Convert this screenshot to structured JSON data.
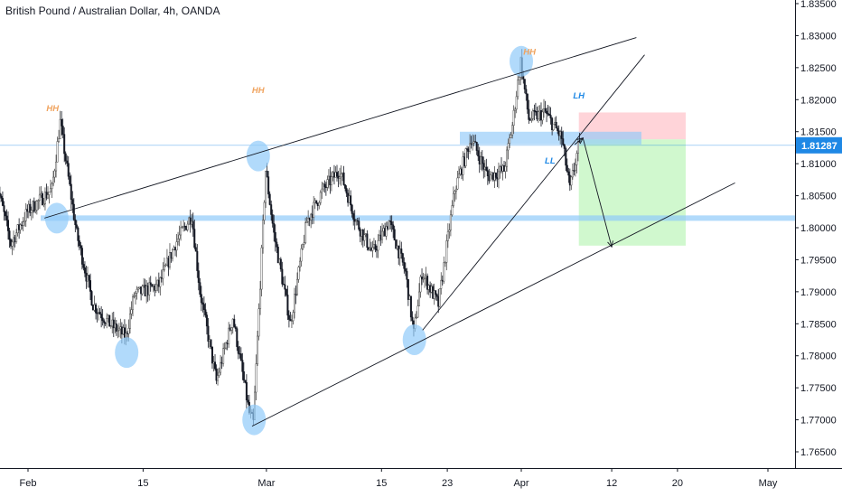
{
  "header": {
    "title": "British Pound / Australian Dollar, 4h, OANDA"
  },
  "colors": {
    "up": "#4d4d4d",
    "down": "#131722",
    "level": "#90caf9",
    "circle": "#90caf9",
    "stop_zone": "#ffcdd2",
    "target_zone": "#c8f7c5",
    "price_badge": "#1e88e5",
    "note_hh": "#f0a35e",
    "note_blue": "#1e88e5",
    "trend_line": "#131722"
  },
  "chart_data": {
    "type": "candlestick",
    "instrument": "British Pound / Australian Dollar",
    "timeframe": "4h",
    "broker": "OANDA",
    "current_price_label": "1.81287",
    "current_price": 1.81287,
    "ylim": [
      1.762,
      1.8365
    ],
    "y_ticks": [
      {
        "v": 1.835,
        "label": "1.83500"
      },
      {
        "v": 1.83,
        "label": "1.83000"
      },
      {
        "v": 1.825,
        "label": "1.82500"
      },
      {
        "v": 1.82,
        "label": "1.82000"
      },
      {
        "v": 1.815,
        "label": "1.81500"
      },
      {
        "v": 1.81,
        "label": "1.81000"
      },
      {
        "v": 1.805,
        "label": "1.80500"
      },
      {
        "v": 1.8,
        "label": "1.80000"
      },
      {
        "v": 1.795,
        "label": "1.79500"
      },
      {
        "v": 1.79,
        "label": "1.79000"
      },
      {
        "v": 1.785,
        "label": "1.78500"
      },
      {
        "v": 1.78,
        "label": "1.78000"
      },
      {
        "v": 1.775,
        "label": "1.77500"
      },
      {
        "v": 1.77,
        "label": "1.77000"
      },
      {
        "v": 1.765,
        "label": "1.76500"
      }
    ],
    "x_ticks": [
      {
        "date": "2020-02-01",
        "label": "Feb"
      },
      {
        "date": "2020-02-15",
        "label": "15"
      },
      {
        "date": "2020-03-01",
        "label": "Mar"
      },
      {
        "date": "2020-03-15",
        "label": "15"
      },
      {
        "date": "2020-03-23",
        "label": "23"
      },
      {
        "date": "2020-04-01",
        "label": "Apr"
      },
      {
        "date": "2020-04-12",
        "label": "12"
      },
      {
        "date": "2020-04-20",
        "label": "20"
      },
      {
        "date": "2020-05-01",
        "label": "May"
      }
    ],
    "price_path": [
      [
        "2020-01-28",
        1.8085
      ],
      [
        "2020-01-30",
        1.7975
      ],
      [
        "2020-02-01",
        1.8025
      ],
      [
        "2020-02-04",
        1.806
      ],
      [
        "2020-02-05",
        1.8165
      ],
      [
        "2020-02-07",
        1.799
      ],
      [
        "2020-02-09",
        1.788
      ],
      [
        "2020-02-11",
        1.785
      ],
      [
        "2020-02-13",
        1.783
      ],
      [
        "2020-02-14",
        1.7895
      ],
      [
        "2020-02-17",
        1.791
      ],
      [
        "2020-02-19",
        1.7975
      ],
      [
        "2020-02-21",
        1.802
      ],
      [
        "2020-02-22",
        1.79
      ],
      [
        "2020-02-24",
        1.776
      ],
      [
        "2020-02-26",
        1.786
      ],
      [
        "2020-02-28",
        1.771
      ],
      [
        "2020-02-28T12:00",
        1.7695
      ],
      [
        "2020-03-01",
        1.809
      ],
      [
        "2020-03-02",
        1.799
      ],
      [
        "2020-03-04",
        1.785
      ],
      [
        "2020-03-06",
        1.801
      ],
      [
        "2020-03-08",
        1.806
      ],
      [
        "2020-03-10",
        1.809
      ],
      [
        "2020-03-12",
        1.801
      ],
      [
        "2020-03-14",
        1.796
      ],
      [
        "2020-03-16",
        1.801
      ],
      [
        "2020-03-18",
        1.793
      ],
      [
        "2020-03-19",
        1.7835
      ],
      [
        "2020-03-20",
        1.793
      ],
      [
        "2020-03-22",
        1.788
      ],
      [
        "2020-03-24",
        1.806
      ],
      [
        "2020-03-26",
        1.814
      ],
      [
        "2020-03-28",
        1.808
      ],
      [
        "2020-03-30",
        1.809
      ],
      [
        "2020-03-31",
        1.816
      ],
      [
        "2020-04-01",
        1.826
      ],
      [
        "2020-04-02",
        1.817
      ],
      [
        "2020-04-04",
        1.818
      ],
      [
        "2020-04-06",
        1.814
      ],
      [
        "2020-04-07",
        1.806
      ],
      [
        "2020-04-08",
        1.8125
      ]
    ],
    "horizontal_levels": [
      {
        "name": "support-level",
        "y": 1.8015
      },
      {
        "name": "resistance-level",
        "y": 1.814
      }
    ],
    "trend_lines": [
      {
        "name": "upper-channel-line",
        "from": [
          "2020-02-03",
          1.8015
        ],
        "to": [
          "2020-04-15",
          1.8297
        ]
      },
      {
        "name": "lower-channel-line",
        "from": [
          "2020-02-28T06:00",
          1.769
        ],
        "to": [
          "2020-04-27",
          1.807
        ]
      },
      {
        "name": "rising-trend-line",
        "from": [
          "2020-03-20",
          1.784
        ],
        "to": [
          "2020-04-16",
          1.827
        ]
      }
    ],
    "annotations": [
      {
        "text": "HH",
        "date": "2020-02-04",
        "y": 1.8182,
        "color": "note_hh"
      },
      {
        "text": "HH",
        "date": "2020-02-29",
        "y": 1.821,
        "color": "note_hh"
      },
      {
        "text": "HH",
        "date": "2020-04-02",
        "y": 1.827,
        "color": "note_hh"
      },
      {
        "text": "LH",
        "date": "2020-04-08",
        "y": 1.8202,
        "color": "note_blue"
      },
      {
        "text": "LL",
        "date": "2020-04-04T12:00",
        "y": 1.81,
        "color": "note_blue"
      }
    ],
    "circles": [
      {
        "date": "2020-02-04T12:00",
        "y": 1.8015
      },
      {
        "date": "2020-02-13",
        "y": 1.7805
      },
      {
        "date": "2020-02-29",
        "y": 1.8112
      },
      {
        "date": "2020-02-28T12:00",
        "y": 1.77
      },
      {
        "date": "2020-03-19",
        "y": 1.7825
      },
      {
        "date": "2020-04-01",
        "y": 1.826
      }
    ],
    "position": {
      "side": "short",
      "start": "2020-04-08",
      "end": "2020-04-21",
      "entry": 1.8138,
      "stop": 1.818,
      "target": 1.7972
    },
    "projection_path": [
      [
        "2020-04-07T12:00",
        1.813
      ],
      [
        "2020-04-08T12:00",
        1.814
      ],
      [
        "2020-04-12",
        1.797
      ]
    ]
  }
}
